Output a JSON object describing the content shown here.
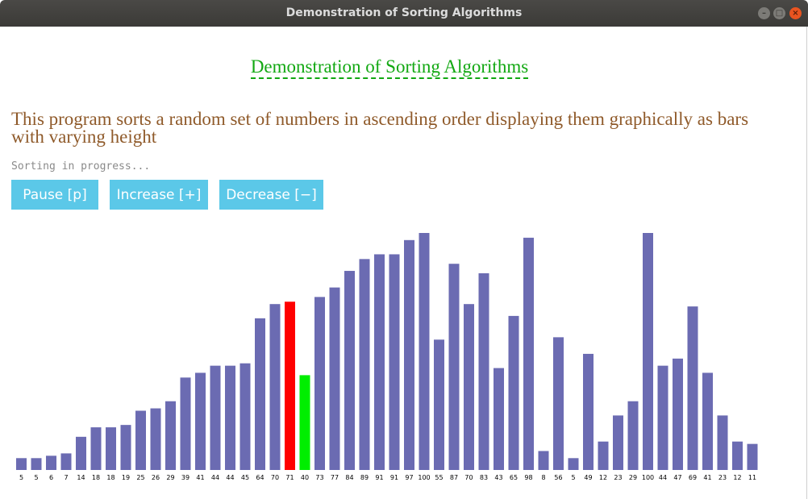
{
  "window": {
    "title": "Demonstration of Sorting Algorithms"
  },
  "page": {
    "heading": "Demonstration of Sorting Algorithms",
    "description": "This program sorts a random set of numbers in ascending order displaying them graphically as bars with varying height",
    "status": "Sorting in progress..."
  },
  "buttons": {
    "pause": "Pause [p]",
    "increase": "Increase [+]",
    "decrease": "Decrease [−]"
  },
  "colors": {
    "bar": "#6b6bb2",
    "compare_a": "#ff0000",
    "compare_b": "#00ee00",
    "heading": "#12a812",
    "description": "#8f5a2a",
    "button": "#5bc8e8"
  },
  "icons": {
    "minimize": "minimize-icon",
    "maximize": "maximize-icon",
    "close": "close-icon"
  },
  "chart_data": {
    "type": "bar",
    "title": "",
    "values": [
      5,
      5,
      6,
      7,
      14,
      18,
      18,
      19,
      25,
      26,
      29,
      39,
      41,
      44,
      44,
      45,
      64,
      70,
      71,
      40,
      73,
      77,
      84,
      89,
      91,
      91,
      97,
      100,
      55,
      87,
      70,
      83,
      43,
      65,
      98,
      8,
      56,
      5,
      49,
      12,
      23,
      29,
      100,
      44,
      47,
      69,
      41,
      23,
      12,
      11
    ],
    "highlight": {
      "red_index": 18,
      "green_index": 19
    },
    "ylim": [
      0,
      100
    ]
  }
}
